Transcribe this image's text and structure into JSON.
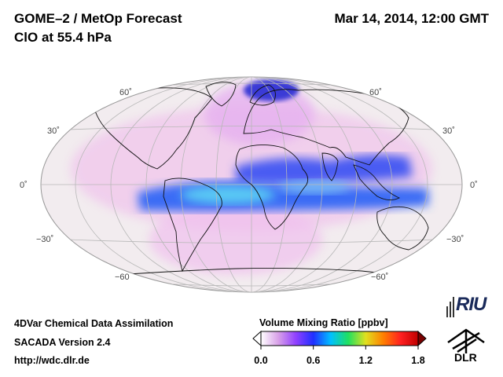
{
  "header": {
    "title": "GOME–2 / MetOp Forecast",
    "subtitle": "ClO at 55.4 hPa",
    "datetime": "Mar 14, 2014, 12:00 GMT"
  },
  "map": {
    "projection": "Hammer-Aitoff",
    "lat_labels_left": [
      "60˚",
      "30˚",
      "0˚",
      "−30˚",
      "−60"
    ],
    "lat_labels_right": [
      "60˚",
      "30˚",
      "0˚",
      "−30˚",
      "−60˚"
    ]
  },
  "footer": {
    "method": "4DVar Chemical Data Assimilation",
    "version": "SACADA Version 2.4",
    "url": "http://wdc.dlr.de"
  },
  "colorbar": {
    "title": "Volume Mixing Ratio [ppbv]",
    "ticks": [
      "0.0",
      "0.6",
      "1.2",
      "1.8"
    ],
    "min": 0.0,
    "max": 1.8,
    "colors": [
      "#ffffff",
      "#d8a0e8",
      "#9040ff",
      "#2030ff",
      "#00c0ff",
      "#20e060",
      "#e0e020",
      "#ff8000",
      "#ff2020",
      "#c00000"
    ]
  },
  "logos": {
    "riu": "RIU",
    "dlr": "DLR"
  }
}
